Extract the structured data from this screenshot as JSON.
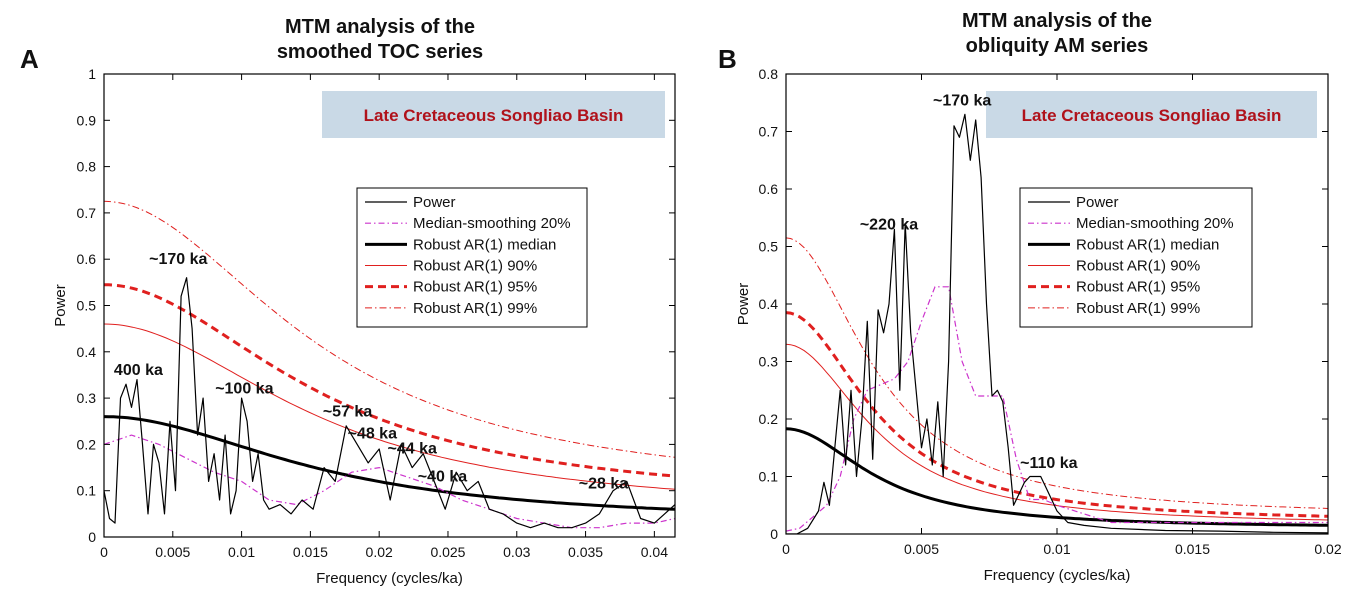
{
  "chart_data": [
    {
      "type": "line",
      "panel_letter": "A",
      "title_lines": [
        "MTM analysis of the",
        "smoothed TOC series"
      ],
      "xlabel": "Frequency (cycles/ka)",
      "ylabel": "Power",
      "xlim": [
        0,
        0.0415
      ],
      "ylim": [
        0,
        1
      ],
      "x_ticks": [
        "0",
        "0.005",
        "0.01",
        "0.015",
        "0.02",
        "0.025",
        "0.03",
        "0.035",
        "0.04"
      ],
      "x_tick_values": [
        0,
        0.005,
        0.01,
        0.015,
        0.02,
        0.025,
        0.03,
        0.035,
        0.04
      ],
      "y_ticks": [
        "0",
        "0.1",
        "0.2",
        "0.3",
        "0.4",
        "0.5",
        "0.6",
        "0.7",
        "0.8",
        "0.9",
        "1"
      ],
      "y_tick_values": [
        0,
        0.1,
        0.2,
        0.3,
        0.4,
        0.5,
        0.6,
        0.7,
        0.8,
        0.9,
        1
      ],
      "badge": "Late Cretaceous Songliao Basin",
      "legend": [
        "Power",
        "Median-smoothing 20%",
        "Robust AR(1) median",
        "Robust AR(1) 90%",
        "Robust AR(1) 95%",
        "Robust AR(1) 99%"
      ],
      "annotations": [
        {
          "text": "~170 ka",
          "x": 0.0054,
          "y": 0.59
        },
        {
          "text": "400 ka",
          "x": 0.0025,
          "y": 0.35
        },
        {
          "text": "~100 ka",
          "x": 0.0102,
          "y": 0.31
        },
        {
          "text": "~57 ka",
          "x": 0.0177,
          "y": 0.26
        },
        {
          "text": "~48 ka",
          "x": 0.0195,
          "y": 0.213
        },
        {
          "text": "~44 ka",
          "x": 0.0224,
          "y": 0.18
        },
        {
          "text": "~40 ka",
          "x": 0.0246,
          "y": 0.12
        },
        {
          "text": "~28 ka",
          "x": 0.0363,
          "y": 0.105
        }
      ],
      "ar1": {
        "median0": 0.26,
        "p90_0": 0.46,
        "p95_0": 0.545,
        "p99_0": 0.725,
        "tail_median": 0.03,
        "tail_p90": 0.05,
        "tail_p95": 0.07,
        "tail_p99": 0.09,
        "decay_scale": 0.016
      },
      "series": [
        {
          "name": "Power",
          "x": [
            0,
            0.0004,
            0.0008,
            0.0012,
            0.0016,
            0.002,
            0.0024,
            0.0028,
            0.0032,
            0.0036,
            0.004,
            0.0044,
            0.0048,
            0.0052,
            0.0056,
            0.006,
            0.0064,
            0.0068,
            0.0072,
            0.0076,
            0.008,
            0.0084,
            0.0088,
            0.0092,
            0.0096,
            0.01,
            0.0104,
            0.0108,
            0.0112,
            0.0116,
            0.012,
            0.0128,
            0.0136,
            0.0144,
            0.0152,
            0.016,
            0.0168,
            0.0176,
            0.0184,
            0.0192,
            0.02,
            0.0208,
            0.0216,
            0.0224,
            0.0232,
            0.024,
            0.0248,
            0.0256,
            0.0264,
            0.0272,
            0.028,
            0.029,
            0.03,
            0.031,
            0.032,
            0.033,
            0.034,
            0.035,
            0.036,
            0.037,
            0.038,
            0.039,
            0.04,
            0.0415
          ],
          "values": [
            0.1,
            0.04,
            0.03,
            0.3,
            0.33,
            0.28,
            0.34,
            0.2,
            0.05,
            0.2,
            0.16,
            0.05,
            0.25,
            0.1,
            0.52,
            0.56,
            0.45,
            0.22,
            0.3,
            0.12,
            0.18,
            0.08,
            0.22,
            0.05,
            0.1,
            0.3,
            0.25,
            0.12,
            0.18,
            0.08,
            0.06,
            0.07,
            0.05,
            0.08,
            0.06,
            0.15,
            0.12,
            0.24,
            0.2,
            0.16,
            0.19,
            0.08,
            0.2,
            0.15,
            0.18,
            0.12,
            0.06,
            0.14,
            0.1,
            0.12,
            0.06,
            0.05,
            0.03,
            0.02,
            0.03,
            0.02,
            0.02,
            0.03,
            0.05,
            0.1,
            0.12,
            0.04,
            0.03,
            0.07
          ]
        },
        {
          "name": "Median-smoothing 20%",
          "x": [
            0,
            0.002,
            0.004,
            0.006,
            0.008,
            0.01,
            0.012,
            0.014,
            0.016,
            0.018,
            0.02,
            0.022,
            0.024,
            0.026,
            0.028,
            0.03,
            0.032,
            0.034,
            0.036,
            0.038,
            0.04,
            0.0415
          ],
          "values": [
            0.2,
            0.22,
            0.2,
            0.17,
            0.14,
            0.12,
            0.08,
            0.07,
            0.1,
            0.14,
            0.15,
            0.13,
            0.11,
            0.08,
            0.06,
            0.04,
            0.03,
            0.02,
            0.02,
            0.03,
            0.03,
            0.04
          ]
        }
      ]
    },
    {
      "type": "line",
      "panel_letter": "B",
      "title_lines": [
        "MTM analysis of the",
        "obliquity AM series"
      ],
      "xlabel": "Frequency (cycles/ka)",
      "ylabel": "Power",
      "xlim": [
        0,
        0.02
      ],
      "ylim": [
        0,
        0.8
      ],
      "x_ticks": [
        "0",
        "0.005",
        "0.01",
        "0.015",
        "0.02"
      ],
      "x_tick_values": [
        0,
        0.005,
        0.01,
        0.015,
        0.02
      ],
      "y_ticks": [
        "0",
        "0.1",
        "0.2",
        "0.3",
        "0.4",
        "0.5",
        "0.6",
        "0.7",
        "0.8"
      ],
      "y_tick_values": [
        0,
        0.1,
        0.2,
        0.3,
        0.4,
        0.5,
        0.6,
        0.7,
        0.8
      ],
      "badge": "Late Cretaceous Songliao Basin",
      "legend": [
        "Power",
        "Median-smoothing 20%",
        "Robust AR(1) median",
        "Robust AR(1) 90%",
        "Robust AR(1) 95%",
        "Robust AR(1) 99%"
      ],
      "annotations": [
        {
          "text": "~170 ka",
          "x": 0.0065,
          "y": 0.745
        },
        {
          "text": "~220 ka",
          "x": 0.0038,
          "y": 0.53
        },
        {
          "text": "~110 ka",
          "x": 0.0097,
          "y": 0.115
        }
      ],
      "ar1": {
        "median0": 0.183,
        "p90_0": 0.33,
        "p95_0": 0.385,
        "p99_0": 0.515,
        "tail_median": 0.01,
        "tail_p90": 0.015,
        "tail_p95": 0.02,
        "tail_p99": 0.03,
        "decay_scale": 0.0035
      },
      "series": [
        {
          "name": "Power",
          "x": [
            0,
            0.0004,
            0.0008,
            0.0012,
            0.0014,
            0.0016,
            0.0018,
            0.002,
            0.0022,
            0.0024,
            0.0026,
            0.0028,
            0.003,
            0.0032,
            0.0034,
            0.0036,
            0.0038,
            0.004,
            0.0042,
            0.0044,
            0.0046,
            0.0048,
            0.005,
            0.0052,
            0.0054,
            0.0056,
            0.0058,
            0.006,
            0.0062,
            0.0064,
            0.0066,
            0.0068,
            0.007,
            0.0072,
            0.0074,
            0.0076,
            0.0078,
            0.008,
            0.0082,
            0.0084,
            0.0086,
            0.0088,
            0.009,
            0.0092,
            0.0094,
            0.0096,
            0.0098,
            0.01,
            0.0104,
            0.011,
            0.012,
            0.013,
            0.014,
            0.016,
            0.018,
            0.02
          ],
          "values": [
            0.0,
            0.0,
            0.01,
            0.04,
            0.09,
            0.05,
            0.15,
            0.25,
            0.12,
            0.25,
            0.1,
            0.2,
            0.37,
            0.13,
            0.39,
            0.35,
            0.4,
            0.53,
            0.25,
            0.54,
            0.35,
            0.25,
            0.15,
            0.2,
            0.12,
            0.23,
            0.1,
            0.3,
            0.71,
            0.69,
            0.73,
            0.65,
            0.72,
            0.62,
            0.4,
            0.24,
            0.25,
            0.23,
            0.15,
            0.05,
            0.07,
            0.09,
            0.1,
            0.1,
            0.1,
            0.08,
            0.06,
            0.04,
            0.02,
            0.015,
            0.01,
            0.008,
            0.006,
            0.005,
            0.003,
            0.002
          ]
        },
        {
          "name": "Median-smoothing 20%",
          "x": [
            0,
            0.0005,
            0.001,
            0.0015,
            0.002,
            0.0025,
            0.003,
            0.0035,
            0.004,
            0.0045,
            0.005,
            0.0055,
            0.006,
            0.0065,
            0.007,
            0.0075,
            0.008,
            0.0085,
            0.009,
            0.0095,
            0.01,
            0.011,
            0.012,
            0.014,
            0.016,
            0.018,
            0.02
          ],
          "values": [
            0.005,
            0.01,
            0.03,
            0.05,
            0.1,
            0.2,
            0.25,
            0.26,
            0.27,
            0.3,
            0.37,
            0.43,
            0.43,
            0.3,
            0.24,
            0.24,
            0.24,
            0.13,
            0.06,
            0.06,
            0.05,
            0.035,
            0.02,
            0.02,
            0.02,
            0.02,
            0.02
          ]
        }
      ]
    }
  ]
}
